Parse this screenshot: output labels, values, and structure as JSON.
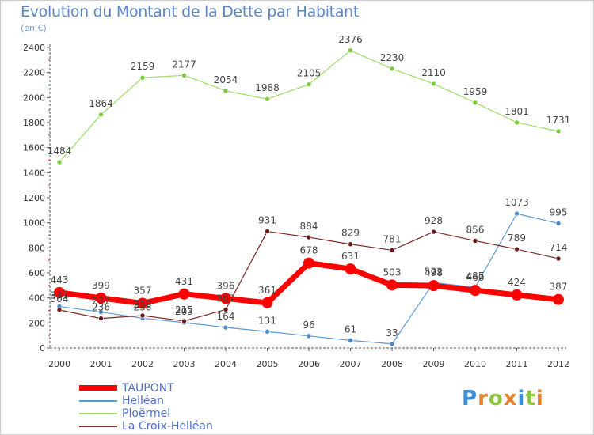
{
  "header": {
    "title": "Evolution du Montant de la Dette par Habitant",
    "subtitle": "(en €)"
  },
  "colors": {
    "series_1": "#ff0000",
    "series_2": "#5b9bd5",
    "series_3": "#99dd66",
    "series_4": "#7b2a2a",
    "axis": "#555555",
    "title": "#5a86c8"
  },
  "brand": {
    "letters": [
      "P",
      "r",
      "o",
      "x",
      "i",
      "t",
      "i"
    ],
    "colors": [
      "#3a8fd8",
      "#e8822a",
      "#8cc63f",
      "#e8822a",
      "#3a8fd8",
      "#8cc63f",
      "#e8822a"
    ]
  },
  "chart_data": {
    "type": "line",
    "title": "Evolution du Montant de la Dette par Habitant",
    "ylabel": "(en €)",
    "xlabel": "",
    "x": [
      "2000",
      "2001",
      "2002",
      "2003",
      "2004",
      "2005",
      "2006",
      "2007",
      "2008",
      "2009",
      "2010",
      "2011",
      "2012"
    ],
    "ylim": [
      0,
      2400
    ],
    "yticks": [
      "0",
      "200",
      "400",
      "600",
      "800",
      "1000",
      "1200",
      "1400",
      "1600",
      "1800",
      "2000",
      "2200",
      "2400"
    ],
    "grid": false,
    "legend_position": "bottom-left",
    "series": [
      {
        "name": "TAUPONT",
        "values": [
          443,
          399,
          357,
          431,
          396,
          361,
          678,
          631,
          503,
          498,
          460,
          424,
          387
        ],
        "labels": [
          "443",
          "399",
          "357",
          "431",
          "396",
          "361",
          "678",
          "631",
          "503",
          "498",
          "460",
          "424",
          "387"
        ]
      },
      {
        "name": "Helléan",
        "values": [
          331,
          287,
          238,
          203,
          164,
          131,
          96,
          61,
          33,
          522,
          485,
          1073,
          995
        ],
        "labels": [
          "331",
          "287",
          "238",
          "203",
          "164",
          "131",
          "96",
          "61",
          "33",
          "522",
          "485",
          "1073",
          "995"
        ]
      },
      {
        "name": "Ploërmel",
        "values": [
          1484,
          1864,
          2159,
          2177,
          2054,
          1988,
          2105,
          2376,
          2230,
          2110,
          1959,
          1801,
          1731
        ],
        "labels": [
          "1484",
          "1864",
          "2159",
          "2177",
          "2054",
          "1988",
          "2105",
          "2376",
          "2230",
          "2110",
          "1959",
          "1801",
          "1731"
        ]
      },
      {
        "name": "La Croix-Helléan",
        "values": [
          304,
          236,
          259,
          215,
          307,
          931,
          884,
          829,
          781,
          928,
          856,
          789,
          714
        ],
        "labels": [
          "304",
          "236",
          "259",
          "215",
          "307",
          "931",
          "884",
          "829",
          "781",
          "928",
          "856",
          "789",
          "714"
        ]
      }
    ]
  }
}
